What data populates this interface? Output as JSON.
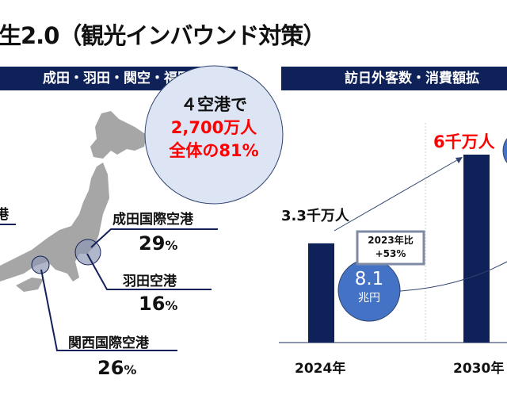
{
  "title": "生2.0（観光インバウンド対策）",
  "left_header": "成田・羽田・関空・福岡に集中",
  "right_header": "訪日外客数・消費額拡",
  "bubble": {
    "line1": "４空港で",
    "line2": "2,700万人",
    "line3": "全体の81%"
  },
  "airports": [
    {
      "name": "成田国際空港",
      "pct": "29",
      "unit": "%"
    },
    {
      "name": "羽田空港",
      "pct": "16",
      "unit": "%"
    },
    {
      "name": "関西国際空港",
      "pct": "26",
      "unit": "%"
    }
  ],
  "partial_airport": "港",
  "chart_data": {
    "type": "bar",
    "categories": [
      "2024年",
      "2030年"
    ],
    "values": [
      3.3,
      6
    ],
    "value_labels": [
      "3.3千万人",
      "6千万人"
    ],
    "growth_box": {
      "line1": "2023年比",
      "line2": "+53%"
    },
    "spend": {
      "value": "8.1",
      "unit": "兆円"
    },
    "ylim": [
      0,
      7
    ],
    "colors": {
      "bar": "#0e2159",
      "spend": "#4472c4",
      "target": "#ff0000"
    }
  }
}
